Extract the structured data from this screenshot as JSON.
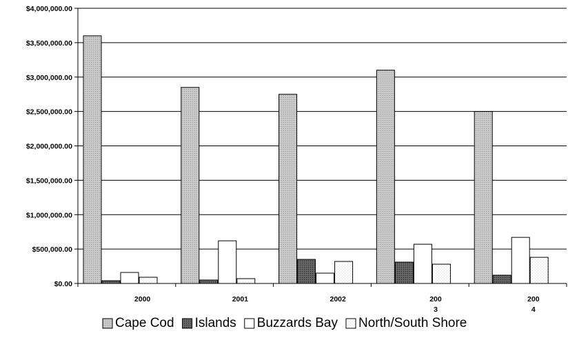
{
  "chart_data": {
    "type": "bar",
    "title": "",
    "xlabel": "",
    "ylabel": "",
    "categories": [
      "2000",
      "2001",
      "2002",
      "200 3",
      "200 4"
    ],
    "category_label_lines": [
      [
        "2000"
      ],
      [
        "2001"
      ],
      [
        "2002"
      ],
      [
        "200",
        "3"
      ],
      [
        "200",
        "4"
      ]
    ],
    "series": [
      {
        "name": "Cape Cod",
        "values": [
          3600000,
          2850000,
          2750000,
          3100000,
          2500000
        ],
        "color": "#c4c4c4",
        "pattern": "fine-dots"
      },
      {
        "name": "Islands",
        "values": [
          40000,
          50000,
          350000,
          310000,
          120000
        ],
        "color": "#5e5e5e",
        "pattern": "dark-dots"
      },
      {
        "name": "Buzzards Bay",
        "values": [
          160000,
          620000,
          150000,
          570000,
          670000
        ],
        "color": "#ffffff",
        "pattern": "none"
      },
      {
        "name": "North/South Shore",
        "values": [
          90000,
          70000,
          320000,
          280000,
          380000
        ],
        "color": "#fafafa",
        "pattern": "faint-dots"
      }
    ],
    "ylim": [
      0,
      4000000
    ],
    "yticks": [
      0,
      500000,
      1000000,
      1500000,
      2000000,
      2500000,
      3000000,
      3500000,
      4000000
    ],
    "ytick_labels": [
      "$0.00",
      "$500,000.00",
      "$1,000,000.00",
      "$1,500,000.00",
      "$2,000,000.00",
      "$2,500,000.00",
      "$3,000,000.00",
      "$3,500,000.00",
      "$4,000,000.00"
    ],
    "grid": true,
    "legend": "bottom-right"
  }
}
